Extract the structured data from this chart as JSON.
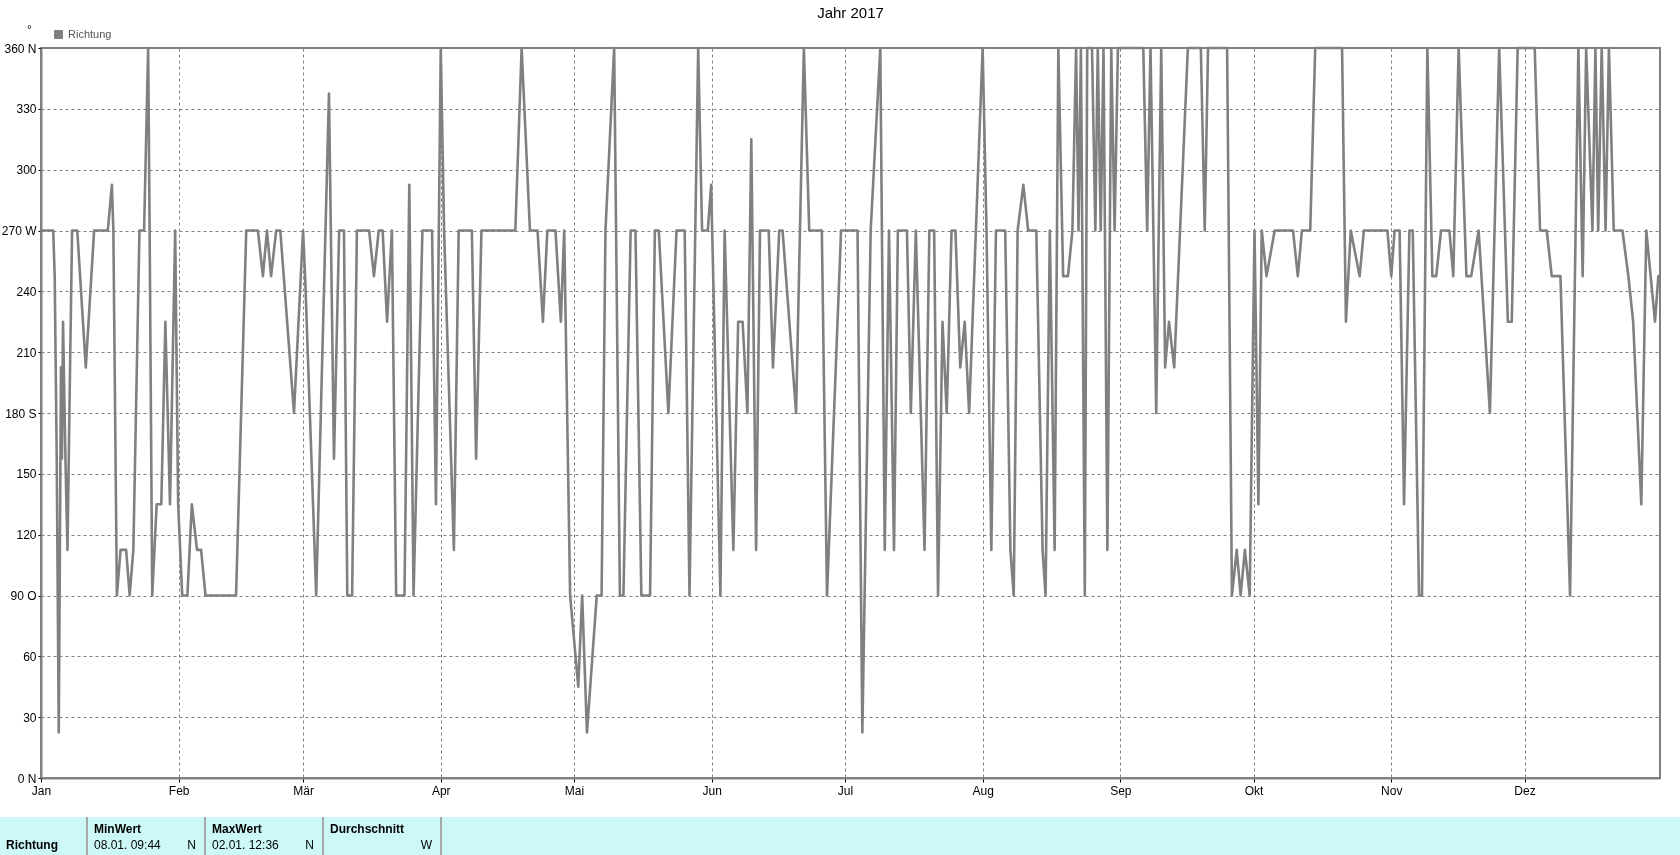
{
  "chart_data": {
    "type": "line",
    "title": "Jahr 2017",
    "ylabel": "°",
    "legend": "top left",
    "grid": true,
    "xlim": [
      "--01-01T00:00",
      "--12-31T12:00"
    ],
    "xticks": [
      {
        "value": "--01-01",
        "label": "Jan"
      },
      {
        "value": "--02-01",
        "label": "Feb"
      },
      {
        "value": "--03-01",
        "label": "Mär"
      },
      {
        "value": "--04-01",
        "label": "Apr"
      },
      {
        "value": "--05-01",
        "label": "Mai"
      },
      {
        "value": "--06-01",
        "label": "Jun"
      },
      {
        "value": "--07-01",
        "label": "Jul"
      },
      {
        "value": "--08-01",
        "label": "Aug"
      },
      {
        "value": "--09-01",
        "label": "Sep"
      },
      {
        "value": "--10-01",
        "label": "Okt"
      },
      {
        "value": "--11-01",
        "label": "Nov"
      },
      {
        "value": "--12-01",
        "label": "Dez"
      }
    ],
    "ylim": [
      0,
      360
    ],
    "yticks": [
      {
        "value": 0,
        "label": "0 N"
      },
      30,
      60,
      {
        "value": 90,
        "label": "90 O"
      },
      120,
      150,
      {
        "value": 180,
        "label": "180 S"
      },
      210,
      240,
      {
        "value": 270,
        "label": "270 W"
      },
      300,
      330,
      {
        "value": 360,
        "label": "360 N"
      }
    ],
    "x": [
      "--01-01T00:00",
      "--01-03T18:00",
      "--01-04T02:00",
      "--01-04T13:00",
      "--01-05T00:00",
      "--01-05T12:00",
      "--01-05T17:00",
      "--01-05T23:00",
      "--01-06T12:00",
      "--01-06T23:00",
      "--01-07T13:00",
      "--01-08T00:00",
      "--01-09T04:00",
      "--01-11T02:00",
      "--01-12T23:00",
      "--01-16T01:00",
      "--01-16T23:00",
      "--01-17T07:00",
      "--01-18T02:00",
      "--01-18T22:00",
      "--01-20T04:00",
      "--01-20T23:00",
      "--01-21T19:00",
      "--01-23T04:00",
      "--01-24T05:00",
      "--01-25T03:00",
      "--01-25T11:00",
      "--01-26T01:00",
      "--01-27T01:00",
      "--01-28T02:00",
      "--01-29T00:00",
      "--01-30T01:00",
      "--01-31T05:00",
      "--01-31T21:00",
      "--02-01T19:00",
      "--02-02T23:00",
      "--02-03T23:00",
      "--02-05T03:00",
      "--02-06T01:00",
      "--02-07T01:00",
      "--02-13T22:00",
      "--02-16T05:00",
      "--02-18T20:00",
      "--02-19T23:00",
      "--02-20T21:00",
      "--02-21T19:00",
      "--02-22T23:00",
      "--02-23T21:00",
      "--02-26T23:00",
      "--03-01T00:00",
      "--03-01T11:00",
      "--03-03T23:00",
      "--03-06T20:00",
      "--03-07T23:00",
      "--03-09T03:00",
      "--03-10T05:00",
      "--03-10T23:00",
      "--03-12T01:00",
      "--03-13T03:00",
      "--03-15T21:00",
      "--03-16T23:00",
      "--03-18T01:00",
      "--03-18T22:00",
      "--03-19T22:00",
      "--03-21T00:00",
      "--03-21T23:00",
      "--03-23T20:00",
      "--03-24T22:00",
      "--03-25T21:00",
      "--03-27T21:00",
      "--03-30T01:00",
      "--03-30T22:00",
      "--04-01T00:00",
      "--04-01T18:00",
      "--04-03T23:00",
      "--04-05T01:00",
      "--04-08T00:00",
      "--04-08T23:00",
      "--04-10T04:00",
      "--04-17T19:00",
      "--04-19T05:00",
      "--04-21T02:00",
      "--04-22T19:00",
      "--04-24T00:00",
      "--04-25T00:00",
      "--04-26T20:00",
      "--04-28T01:00",
      "--04-28T19:00",
      "--04-30T03:00",
      "--05-01T23:00",
      "--05-02T20:00",
      "--05-03T22:00",
      "--05-06T03:00",
      "--05-07T05:00",
      "--05-08T02:00",
      "--05-10T01:00",
      "--05-11T08:00",
      "--05-12T03:00",
      "--05-13T18:00",
      "--05-14T20:00",
      "--05-16T04:00",
      "--05-18T03:00",
      "--05-19T05:00",
      "--05-20T02:00",
      "--05-22T06:00",
      "--05-24T02:00",
      "--05-25T22:00",
      "--05-27T00:00",
      "--05-28T23:00",
      "--05-29T20:00",
      "--05-31T03:00",
      "--05-31T21:00",
      "--06-02T23:00",
      "--06-03T22:00",
      "--06-05T21:00",
      "--06-06T23:00",
      "--06-07T23:00",
      "--06-09T01:00",
      "--06-09T22:00",
      "--06-11T00:00",
      "--06-11T21:00",
      "--06-13T20:00",
      "--06-14T19:00",
      "--06-16T05:00",
      "--06-16T23:00",
      "--06-20T00:00",
      "--06-21T18:00",
      "--06-22T23:00",
      "--06-25T19:00",
      "--06-26T23:00",
      "--06-30T03:00",
      "--07-03T20:00",
      "--07-04T22:00",
      "--07-06T19:00",
      "--07-08T23:00",
      "--07-09T23:00",
      "--07-10T22:00",
      "--07-12T01:00",
      "--07-12T22:00",
      "--07-14T23:00",
      "--07-15T20:00",
      "--07-16T23:00",
      "--07-18T22:00",
      "--07-20T00:00",
      "--07-21T02:00",
      "--07-21T23:00",
      "--07-22T23:00",
      "--07-23T22:00",
      "--07-25T00:00",
      "--07-25T21:00",
      "--07-26T23:00",
      "--07-27T23:00",
      "--07-28T23:00",
      "--08-01T00:00",
      "--08-01T21:00",
      "--08-02T23:00",
      "--08-04T00:00",
      "--08-06T02:00",
      "--08-07T06:00",
      "--08-08T00:00",
      "--08-08T21:00",
      "--08-10T04:00",
      "--08-11T06:00",
      "--08-13T02:00",
      "--08-14T12:00",
      "--08-15T04:00",
      "--08-16T03:00",
      "--08-17T05:00",
      "--08-18T01:00",
      "--08-19T03:00",
      "--08-20T05:00",
      "--08-21T05:00",
      "--08-22T01:00",
      "--08-22T14:00",
      "--08-23T03:00",
      "--08-24T00:00",
      "--08-24T13:00",
      "--08-25T15:00",
      "--08-26T09:00",
      "--08-26T22:00",
      "--08-27T14:00",
      "--08-28T05:00",
      "--08-29T02:00",
      "--08-29T23:00",
      "--08-30T17:00",
      "--08-31T11:00",
      "--09-06T04:00",
      "--09-07T01:00",
      "--09-07T19:00",
      "--09-09T02:00",
      "--09-10T05:00",
      "--09-11T02:00",
      "--09-11T23:00",
      "--09-13T03:00",
      "--09-16T05:00",
      "--09-19T03:00",
      "--09-20T00:00",
      "--09-20T18:00",
      "--09-25T01:00",
      "--09-26T03:00",
      "--09-27T05:00",
      "--09-28T02:00",
      "--09-29T01:00",
      "--09-30T03:00",
      "--10-01T05:00",
      "--10-02T02:00",
      "--10-02T20:00",
      "--10-03T22:00",
      "--10-05T18:00",
      "--10-09T21:00",
      "--10-10T23:00",
      "--10-11T21:00",
      "--10-13T18:00",
      "--10-14T21:00",
      "--10-20T22:00",
      "--10-21T19:00",
      "--10-22T21:00",
      "--10-24T21:00",
      "--10-25T20:00",
      "--10-31T03:00",
      "--11-01T00:00",
      "--11-01T18:00",
      "--11-02T21:00",
      "--11-03T21:00",
      "--11-05T02:00",
      "--11-05T20:00",
      "--11-07T06:00",
      "--11-07T22:00",
      "--11-09T03:00",
      "--11-10T06:00",
      "--11-11T03:00",
      "--11-12T05:00",
      "--11-14T02:00",
      "--11-14T23:00",
      "--11-16T04:00",
      "--11-17T22:00",
      "--11-19T00:00",
      "--11-20T16:00",
      "--11-23T05:00",
      "--11-25T07:00",
      "--11-27T06:00",
      "--11-28T03:00",
      "--11-29T11:00",
      "--12-03T07:00",
      "--12-04T12:00",
      "--12-06T00:00",
      "--12-07T03:00",
      "--12-09T02:00",
      "--12-11T06:00",
      "--12-13T03:00",
      "--12-14T02:00",
      "--12-14T21:00",
      "--12-16T07:00",
      "--12-16T23:00",
      "--12-17T14:00",
      "--12-18T09:00",
      "--12-19T06:00",
      "--12-20T00:00",
      "--12-21T02:00",
      "--12-23T01:00",
      "--12-24T09:00",
      "--12-25T11:00",
      "--12-27T07:00",
      "--12-28T10:00",
      "--12-30T09:00",
      "--12-31T03:00"
    ],
    "series": [
      {
        "name": "Richtung",
        "color": "#808080",
        "values": [
          270,
          270,
          247.5,
          157.5,
          22.5,
          202.5,
          157.5,
          225,
          157.5,
          112.5,
          202.5,
          270,
          270,
          202.5,
          270,
          270,
          292.5,
          270,
          90,
          112.5,
          112.5,
          90,
          112.5,
          270,
          270,
          360,
          270,
          90,
          135,
          135,
          225,
          135,
          270,
          135,
          90,
          90,
          135,
          112.5,
          112.5,
          90,
          90,
          270,
          270,
          247.5,
          270,
          247.5,
          270,
          270,
          180,
          270,
          247.5,
          90,
          337.5,
          157.5,
          270,
          270,
          90,
          90,
          270,
          270,
          247.5,
          270,
          270,
          225,
          270,
          90,
          90,
          292.5,
          90,
          270,
          270,
          135,
          360,
          270,
          112.5,
          270,
          270,
          157.5,
          270,
          270,
          360,
          270,
          270,
          225,
          270,
          270,
          225,
          270,
          90,
          45,
          90,
          22.5,
          90,
          90,
          270,
          360,
          90,
          90,
          270,
          270,
          90,
          90,
          270,
          270,
          180,
          270,
          270,
          90,
          360,
          270,
          270,
          292.5,
          90,
          270,
          112.5,
          225,
          225,
          180,
          315,
          112.5,
          270,
          270,
          202.5,
          270,
          270,
          180,
          360,
          270,
          270,
          90,
          270,
          270,
          22.5,
          270,
          360,
          112.5,
          270,
          112.5,
          270,
          270,
          180,
          270,
          112.5,
          270,
          270,
          90,
          225,
          180,
          270,
          270,
          202.5,
          225,
          180,
          360,
          270,
          112.5,
          270,
          270,
          112.5,
          90,
          270,
          292.5,
          270,
          270,
          112.5,
          90,
          270,
          112.5,
          360,
          247.5,
          247.5,
          270,
          360,
          270,
          360,
          90,
          360,
          360,
          270,
          360,
          270,
          360,
          112.5,
          360,
          270,
          360,
          360,
          270,
          360,
          180,
          360,
          202.5,
          225,
          202.5,
          360,
          360,
          270,
          360,
          360,
          90,
          112.5,
          90,
          112.5,
          90,
          270,
          135,
          270,
          247.5,
          270,
          270,
          247.5,
          270,
          270,
          360,
          360,
          225,
          270,
          247.5,
          270,
          270,
          247.5,
          270,
          270,
          135,
          270,
          270,
          90,
          90,
          360,
          247.5,
          247.5,
          270,
          270,
          247.5,
          360,
          247.5,
          247.5,
          270,
          180,
          360,
          225,
          225,
          360,
          360,
          270,
          270,
          247.5,
          247.5,
          90,
          360,
          247.5,
          360,
          270,
          360,
          270,
          360,
          270,
          360,
          270,
          270,
          247.5,
          225,
          135,
          270,
          225,
          247.5
        ]
      }
    ],
    "annotations": [
      "Richtung",
      "MinWert",
      "08.01. 09:44",
      "N",
      "MaxWert",
      "02.01. 12:36",
      "N",
      "Durchschnitt",
      "W"
    ]
  }
}
